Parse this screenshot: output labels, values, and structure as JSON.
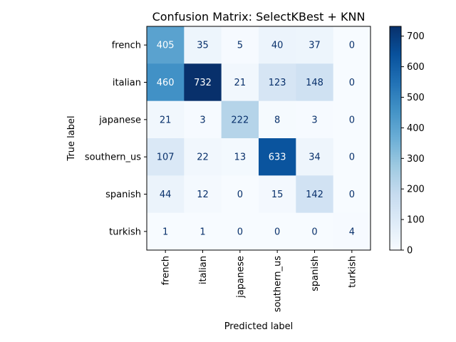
{
  "chart_data": {
    "type": "heatmap",
    "title": "Confusion Matrix: SelectKBest + KNN",
    "xlabel": "Predicted label",
    "ylabel": "True label",
    "row_labels": [
      "french",
      "italian",
      "japanese",
      "southern_us",
      "spanish",
      "turkish"
    ],
    "col_labels": [
      "french",
      "italian",
      "japanese",
      "southern_us",
      "spanish",
      "turkish"
    ],
    "values": [
      [
        405,
        35,
        5,
        40,
        37,
        0
      ],
      [
        460,
        732,
        21,
        123,
        148,
        0
      ],
      [
        21,
        3,
        222,
        8,
        3,
        0
      ],
      [
        107,
        22,
        13,
        633,
        34,
        0
      ],
      [
        44,
        12,
        0,
        15,
        142,
        0
      ],
      [
        1,
        1,
        0,
        0,
        0,
        4
      ]
    ],
    "colormap": "Blues",
    "vmin": 0,
    "vmax": 732,
    "colorbar_ticks": [
      0,
      100,
      200,
      300,
      400,
      500,
      600,
      700
    ],
    "text_color_light": "#ffffff",
    "text_color_dark": "#08306b"
  }
}
